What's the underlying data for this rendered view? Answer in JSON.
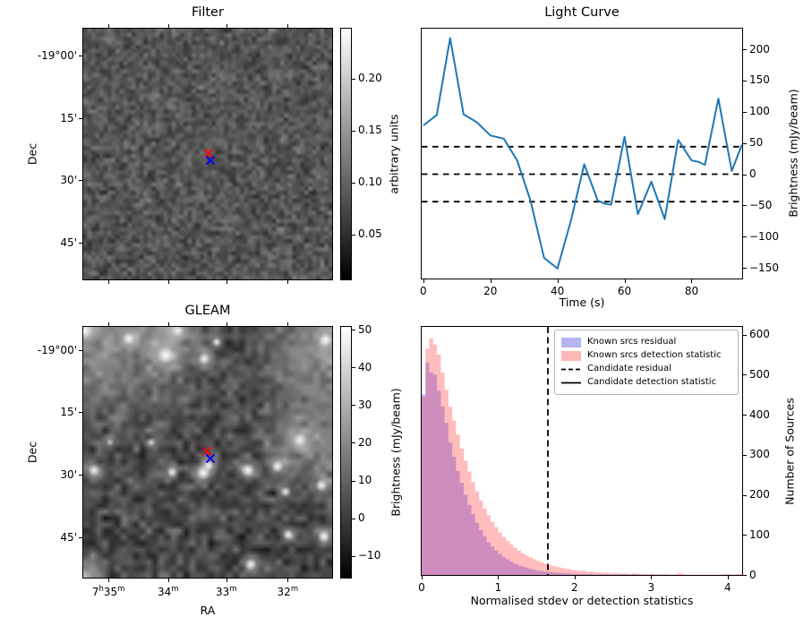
{
  "figure": {
    "background": "#ffffff"
  },
  "panels": {
    "filter": {
      "title": "Filter",
      "ylabel": "Dec",
      "dec_tick_labels": [
        "-19°00'",
        "15'",
        "30'",
        "45'"
      ],
      "markers": [
        {
          "name": "candidate-position-red-x",
          "color": "#ff0000",
          "fx": 0.503,
          "fy": 0.4954
        },
        {
          "name": "matched-source-blue-x",
          "color": "#0000ff",
          "fx": 0.5114,
          "fy": 0.526
        }
      ],
      "colorbar": {
        "label": "arbitrary units",
        "tick_values": [
          0.2,
          0.15,
          0.1,
          0.05
        ],
        "tick_labels": [
          "0.20",
          "0.15",
          "0.10",
          "0.05"
        ],
        "vmin": 0.006,
        "vmax": 0.249
      }
    },
    "gleam": {
      "title": "GLEAM",
      "xlabel": "RA",
      "ylabel": "Dec",
      "ra_tick_labels": [
        [
          "7",
          "sup:h",
          "35",
          "sup:m"
        ],
        [
          "34",
          "sup:m"
        ],
        [
          "33",
          "sup:m"
        ],
        [
          "32",
          "sup:m"
        ]
      ],
      "dec_tick_labels": [
        "-19°00'",
        "15'",
        "30'",
        "45'"
      ],
      "markers": [
        {
          "name": "candidate-position-red-x",
          "color": "#ff0000",
          "fx": 0.497,
          "fy": 0.496
        },
        {
          "name": "matched-source-blue-x",
          "color": "#0000ff",
          "fx": 0.5114,
          "fy": 0.5248
        }
      ],
      "colorbar": {
        "label": "Brightness (mJy/beam)",
        "tick_values": [
          50,
          40,
          30,
          20,
          10,
          0,
          -10
        ],
        "tick_labels": [
          "50",
          "40",
          "30",
          "20",
          "10",
          "0",
          "−10"
        ],
        "vmin": -16,
        "vmax": 51
      }
    }
  },
  "chart_data": [
    {
      "id": "light_curve",
      "type": "line",
      "title": "Light Curve",
      "xlabel": "Time (s)",
      "ylabel": "Brightness (mJy/beam)",
      "line_color": "#1f77b4",
      "x": [
        0,
        4,
        8,
        12,
        16,
        20,
        24,
        28,
        32,
        36,
        40,
        44,
        48,
        52,
        54,
        56,
        60,
        64,
        68,
        72,
        76,
        80,
        82,
        84,
        88,
        92,
        95
      ],
      "y": [
        78,
        95,
        218,
        96,
        83,
        62,
        57,
        22,
        -43,
        -134,
        -151,
        -75,
        16,
        -42,
        -47,
        -49,
        60,
        -64,
        -12,
        -72,
        55,
        22,
        20,
        15,
        121,
        5,
        47
      ],
      "hlines": [
        44,
        0,
        -44
      ],
      "hline_style": "dashed",
      "hline_color": "#000000",
      "xlim": [
        -0.5,
        95.1
      ],
      "ylim": [
        -167,
        233
      ],
      "x_tick_values": [
        0,
        20,
        40,
        60,
        80
      ],
      "x_tick_labels": [
        "0",
        "20",
        "40",
        "60",
        "80"
      ],
      "y_tick_values": [
        200,
        150,
        100,
        50,
        0,
        -50,
        -100,
        -150
      ],
      "y_tick_labels": [
        "200",
        "150",
        "100",
        "50",
        "0",
        "−50",
        "−100",
        "−150"
      ],
      "grid": false,
      "y_axis_side": "right"
    },
    {
      "id": "histogram",
      "type": "bar",
      "xlabel": "Normalised stdev or detection statistics",
      "ylabel": "Number of Sources",
      "bin_start": 0,
      "bin_width": 0.05,
      "series": [
        {
          "name": "Known srcs residual",
          "color": "rgba(40,40,255,0.33)",
          "values": [
            450,
            530,
            505,
            500,
            460,
            420,
            380,
            330,
            295,
            260,
            230,
            200,
            175,
            152,
            130,
            112,
            96,
            82,
            71,
            61,
            52,
            45,
            39,
            33,
            28,
            24,
            21,
            18,
            15,
            13,
            11,
            10,
            8,
            7,
            6,
            5,
            5,
            4,
            4,
            3,
            3,
            2,
            2,
            2,
            2,
            1,
            2,
            1,
            1,
            1,
            1,
            1,
            2,
            1,
            1,
            3,
            1,
            1,
            1,
            0,
            1,
            0,
            1,
            0,
            0,
            1,
            0,
            0,
            0,
            0,
            0,
            0,
            0,
            0,
            0,
            0,
            0,
            0,
            0,
            0,
            0,
            0,
            0,
            0
          ]
        },
        {
          "name": "Known srcs detection statistic",
          "color": "rgba(255,55,55,0.33)",
          "values": [
            445,
            565,
            590,
            575,
            550,
            505,
            462,
            420,
            385,
            350,
            315,
            285,
            258,
            232,
            208,
            186,
            166,
            149,
            133,
            119,
            106,
            95,
            85,
            76,
            68,
            61,
            54,
            49,
            44,
            39,
            35,
            31,
            28,
            25,
            23,
            20,
            18,
            16,
            15,
            13,
            12,
            10,
            11,
            8,
            9,
            7,
            6,
            5,
            6,
            4,
            5,
            4,
            3,
            4,
            3,
            3,
            4,
            2,
            3,
            2,
            3,
            2,
            2,
            3,
            2,
            1,
            2,
            5,
            2,
            1,
            1,
            1,
            1,
            1,
            1,
            1,
            1,
            1,
            2,
            3,
            2,
            1,
            3,
            2
          ]
        }
      ],
      "vlines": [
        {
          "name": "Candidate residual",
          "style": "dashed",
          "x": 1.65,
          "color": "#000000"
        }
      ],
      "xlim": [
        0,
        4.19
      ],
      "ylim": [
        0,
        619
      ],
      "x_tick_values": [
        0,
        1,
        2,
        3,
        4
      ],
      "x_tick_labels": [
        "0",
        "1",
        "2",
        "3",
        "4"
      ],
      "y_tick_values": [
        0,
        100,
        200,
        300,
        400,
        500,
        600
      ],
      "y_tick_labels": [
        "0",
        "100",
        "200",
        "300",
        "400",
        "500",
        "600"
      ],
      "y_axis_side": "right",
      "legend": {
        "position": "upper right",
        "items": [
          {
            "label": "Known srcs residual",
            "swatch": "patch",
            "color": "#b4b4f1"
          },
          {
            "label": "Known srcs detection statistic",
            "swatch": "patch",
            "color": "#fbb6b6"
          },
          {
            "label": "Candidate residual",
            "swatch": "dashed-line",
            "color": "#000000"
          },
          {
            "label": "Candidate detection statistic",
            "swatch": "solid-line",
            "color": "#000000"
          }
        ]
      }
    },
    {
      "id": "filter_map",
      "type": "heatmap",
      "title": "Filter",
      "ylabel": "Dec",
      "y_tick_labels": [
        "-19°00'",
        "15'",
        "30'",
        "45'"
      ],
      "colorbar_label": "arbitrary units",
      "colorbar_tick_values": [
        0.2,
        0.15,
        0.1,
        0.05
      ],
      "value_range": [
        0.006,
        0.249
      ],
      "colormap": "gray",
      "content": "grayscale noise map with red x and blue x markers near centre"
    },
    {
      "id": "gleam_map",
      "type": "heatmap",
      "title": "GLEAM",
      "xlabel": "RA",
      "ylabel": "Dec",
      "x_tick_labels": [
        "7h35m",
        "34m",
        "33m",
        "32m"
      ],
      "y_tick_labels": [
        "-19°00'",
        "15'",
        "30'",
        "45'"
      ],
      "colorbar_label": "Brightness (mJy/beam)",
      "colorbar_tick_values": [
        50,
        40,
        30,
        20,
        10,
        0,
        -10
      ],
      "value_range": [
        -16,
        51
      ],
      "colormap": "gray",
      "content": "grayscale sky image with bright point sources, red x and blue x markers near centre"
    }
  ]
}
